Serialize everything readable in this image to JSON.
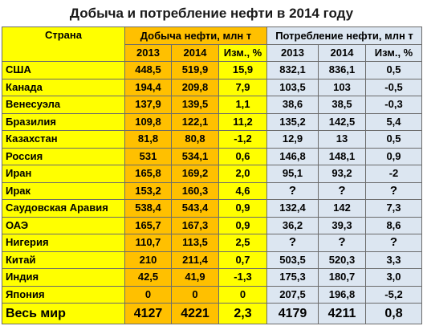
{
  "title": "Добыча и потребление нефти в 2014 году",
  "headers": {
    "country": "Страна",
    "production": "Добыча нефти, млн т",
    "consumption": "Потребление нефти, млн т",
    "y2013": "2013",
    "y2014": "2014",
    "change": "Изм., %"
  },
  "colors": {
    "yellow": "#ffff00",
    "orange": "#ffc000",
    "blue": "#dce6f1"
  },
  "rows": [
    {
      "country": "США",
      "p2013": "448,5",
      "p2014": "519,9",
      "pchg": "15,9",
      "c2013": "832,1",
      "c2014": "836,1",
      "cchg": "0,5"
    },
    {
      "country": "Канада",
      "p2013": "194,4",
      "p2014": "209,8",
      "pchg": "7,9",
      "c2013": "103,5",
      "c2014": "103",
      "cchg": "-0,5"
    },
    {
      "country": "Венесуэла",
      "p2013": "137,9",
      "p2014": "139,5",
      "pchg": "1,1",
      "c2013": "38,6",
      "c2014": "38,5",
      "cchg": "-0,3"
    },
    {
      "country": "Бразилия",
      "p2013": "109,8",
      "p2014": "122,1",
      "pchg": "11,2",
      "c2013": "135,2",
      "c2014": "142,5",
      "cchg": "5,4"
    },
    {
      "country": "Казахстан",
      "p2013": "81,8",
      "p2014": "80,8",
      "pchg": "-1,2",
      "c2013": "12,9",
      "c2014": "13",
      "cchg": "0,5"
    },
    {
      "country": "Россия",
      "p2013": "531",
      "p2014": "534,1",
      "pchg": "0,6",
      "c2013": "146,8",
      "c2014": "148,1",
      "cchg": "0,9"
    },
    {
      "country": "Иран",
      "p2013": "165,8",
      "p2014": "169,2",
      "pchg": "2,0",
      "c2013": "95,1",
      "c2014": "93,2",
      "cchg": "-2"
    },
    {
      "country": "Ирак",
      "p2013": "153,2",
      "p2014": "160,3",
      "pchg": "4,6",
      "c2013": "?",
      "c2014": "?",
      "cchg": "?"
    },
    {
      "country": "Саудовская Аравия",
      "p2013": "538,4",
      "p2014": "543,4",
      "pchg": "0,9",
      "c2013": "132,4",
      "c2014": "142",
      "cchg": "7,3"
    },
    {
      "country": "ОАЭ",
      "p2013": "165,7",
      "p2014": "167,3",
      "pchg": "0,9",
      "c2013": "36,2",
      "c2014": "39,3",
      "cchg": "8,6"
    },
    {
      "country": "Нигерия",
      "p2013": "110,7",
      "p2014": "113,5",
      "pchg": "2,5",
      "c2013": "?",
      "c2014": "?",
      "cchg": "?"
    },
    {
      "country": "Китай",
      "p2013": "210",
      "p2014": "211,4",
      "pchg": "0,7",
      "c2013": "503,5",
      "c2014": "520,3",
      "cchg": "3,3"
    },
    {
      "country": "Индия",
      "p2013": "42,5",
      "p2014": "41,9",
      "pchg": "-1,3",
      "c2013": "175,3",
      "c2014": "180,7",
      "cchg": "3,0"
    },
    {
      "country": "Япония",
      "p2013": "0",
      "p2014": "0",
      "pchg": "0",
      "c2013": "207,5",
      "c2014": "196,8",
      "cchg": "-5,2"
    }
  ],
  "total": {
    "country": "Весь мир",
    "p2013": "4127",
    "p2014": "4221",
    "pchg": "2,3",
    "c2013": "4179",
    "c2014": "4211",
    "cchg": "0,8"
  }
}
